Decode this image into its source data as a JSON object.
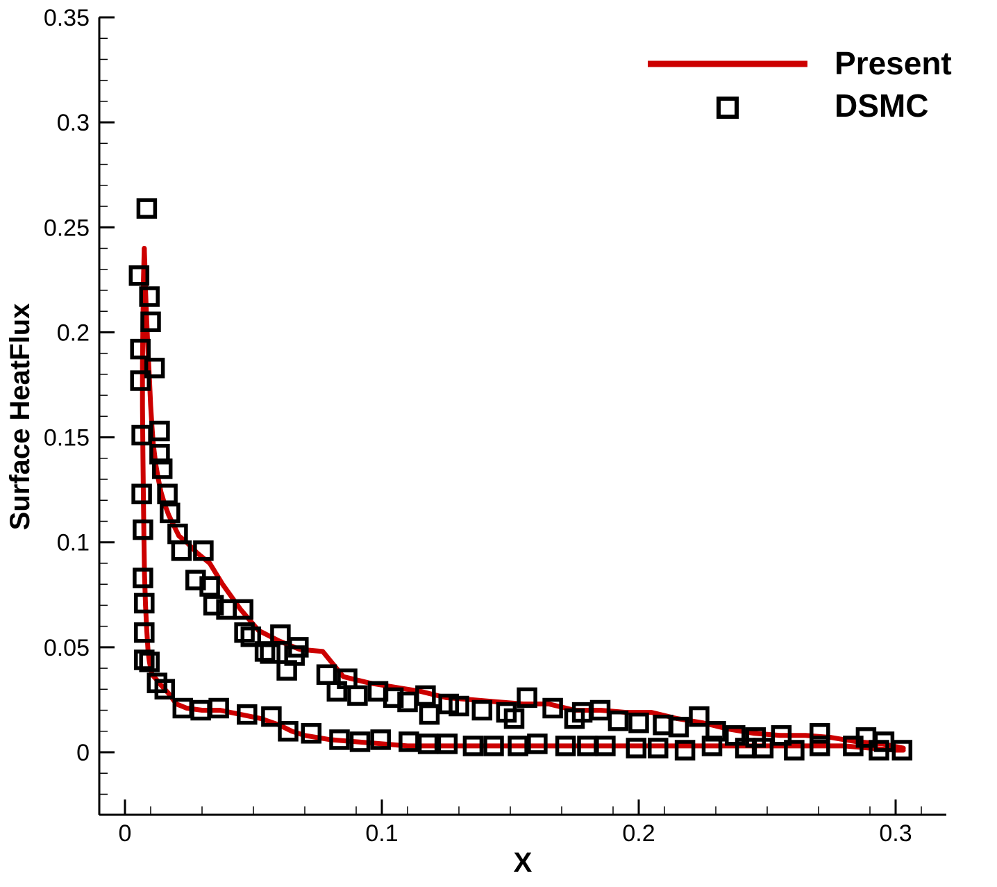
{
  "chart_data": {
    "type": "line",
    "xlabel": "X",
    "ylabel": "Surface HeatFlux",
    "xlim": [
      -0.01,
      0.32
    ],
    "ylim": [
      -0.03,
      0.35
    ],
    "xticks": [
      {
        "value": 0,
        "label": "0"
      },
      {
        "value": 0.1,
        "label": "0.1"
      },
      {
        "value": 0.2,
        "label": "0.2"
      },
      {
        "value": 0.3,
        "label": "0.3"
      }
    ],
    "yticks": [
      {
        "value": 0,
        "label": "0"
      },
      {
        "value": 0.05,
        "label": "0.05"
      },
      {
        "value": 0.1,
        "label": "0.1"
      },
      {
        "value": 0.15,
        "label": "0.15"
      },
      {
        "value": 0.2,
        "label": "0.2"
      },
      {
        "value": 0.25,
        "label": "0.25"
      },
      {
        "value": 0.3,
        "label": "0.3"
      },
      {
        "value": 0.35,
        "label": "0.35"
      }
    ],
    "xminor_step": 0.02,
    "yminor_step": 0.01,
    "legend_position": "top-right",
    "series": [
      {
        "name": "Present",
        "style": "line",
        "color": "#cc0000",
        "segments": [
          {
            "x": [
              0.0075,
              0.0078,
              0.008,
              0.0085,
              0.009,
              0.0095,
              0.01,
              0.0105,
              0.011,
              0.012,
              0.013,
              0.014,
              0.0155,
              0.017,
              0.019,
              0.021,
              0.024,
              0.028,
              0.033,
              0.038,
              0.045,
              0.052,
              0.06,
              0.068,
              0.077,
              0.085,
              0.095,
              0.105,
              0.115,
              0.125,
              0.135,
              0.145,
              0.155,
              0.165,
              0.175,
              0.185,
              0.195,
              0.205,
              0.215,
              0.225,
              0.235,
              0.245,
              0.255,
              0.265,
              0.275,
              0.285,
              0.295,
              0.303
            ],
            "y": [
              0.24,
              0.23,
              0.22,
              0.205,
              0.19,
              0.178,
              0.165,
              0.155,
              0.147,
              0.137,
              0.13,
              0.124,
              0.118,
              0.113,
              0.108,
              0.103,
              0.1,
              0.095,
              0.09,
              0.08,
              0.068,
              0.058,
              0.053,
              0.049,
              0.048,
              0.036,
              0.033,
              0.031,
              0.029,
              0.026,
              0.025,
              0.024,
              0.023,
              0.023,
              0.02,
              0.02,
              0.019,
              0.019,
              0.016,
              0.014,
              0.011,
              0.009,
              0.008,
              0.008,
              0.007,
              0.005,
              0.004,
              0.002
            ]
          },
          {
            "x": [
              0.0075,
              0.0072,
              0.007,
              0.0068,
              0.0068,
              0.007,
              0.0072,
              0.0074,
              0.0076,
              0.008,
              0.0085,
              0.009,
              0.0095,
              0.0105,
              0.012,
              0.014,
              0.017,
              0.02,
              0.024,
              0.03,
              0.037,
              0.045,
              0.053,
              0.06,
              0.065,
              0.07,
              0.08,
              0.09,
              0.1,
              0.11,
              0.12,
              0.13,
              0.14,
              0.15,
              0.16,
              0.17,
              0.18,
              0.19,
              0.2,
              0.21,
              0.22,
              0.23,
              0.24,
              0.25,
              0.26,
              0.27,
              0.28,
              0.29,
              0.3,
              0.303
            ],
            "y": [
              0.24,
              0.225,
              0.205,
              0.185,
              0.165,
              0.14,
              0.12,
              0.1,
              0.085,
              0.07,
              0.058,
              0.048,
              0.043,
              0.037,
              0.035,
              0.032,
              0.028,
              0.023,
              0.021,
              0.02,
              0.02,
              0.018,
              0.016,
              0.013,
              0.01,
              0.008,
              0.006,
              0.005,
              0.004,
              0.003,
              0.003,
              0.003,
              0.003,
              0.003,
              0.003,
              0.003,
              0.003,
              0.003,
              0.003,
              0.003,
              0.003,
              0.003,
              0.003,
              0.003,
              0.003,
              0.003,
              0.003,
              0.002,
              0.001,
              0.001
            ]
          }
        ]
      },
      {
        "name": "DSMC",
        "style": "square-markers",
        "color": "#000000",
        "x": [
          0.0085,
          0.0055,
          0.0095,
          0.01,
          0.006,
          0.0115,
          0.006,
          0.0135,
          0.0065,
          0.0135,
          0.0145,
          0.0065,
          0.0165,
          0.007,
          0.0175,
          0.0205,
          0.007,
          0.022,
          0.0075,
          0.0305,
          0.0275,
          0.0075,
          0.033,
          0.0345,
          0.046,
          0.0075,
          0.0395,
          0.0465,
          0.049,
          0.0545,
          0.0605,
          0.0565,
          0.0675,
          0.066,
          0.063,
          0.0785,
          0.0865,
          0.0825,
          0.0905,
          0.0985,
          0.1045,
          0.11,
          0.117,
          0.1185,
          0.126,
          0.13,
          0.139,
          0.1485,
          0.1515,
          0.1565,
          0.1665,
          0.175,
          0.178,
          0.185,
          0.192,
          0.2,
          0.2095,
          0.2155,
          0.2235,
          0.23,
          0.2375,
          0.2455,
          0.2555,
          0.2705,
          0.2885,
          0.2955,
          0.0095,
          0.0125,
          0.0155,
          0.0225,
          0.0295,
          0.0365,
          0.0475,
          0.057,
          0.0635,
          0.0725,
          0.0835,
          0.0915,
          0.0995,
          0.1105,
          0.118,
          0.1255,
          0.1355,
          0.1435,
          0.153,
          0.1605,
          0.1715,
          0.18,
          0.187,
          0.199,
          0.2075,
          0.218,
          0.2285,
          0.2415,
          0.2485,
          0.2605,
          0.2705,
          0.2835,
          0.2935,
          0.3025
        ],
        "y": [
          0.259,
          0.227,
          0.217,
          0.205,
          0.192,
          0.183,
          0.177,
          0.153,
          0.151,
          0.142,
          0.135,
          0.123,
          0.123,
          0.106,
          0.114,
          0.104,
          0.083,
          0.096,
          0.071,
          0.096,
          0.082,
          0.057,
          0.079,
          0.07,
          0.068,
          0.044,
          0.068,
          0.057,
          0.055,
          0.048,
          0.056,
          0.047,
          0.05,
          0.046,
          0.039,
          0.037,
          0.035,
          0.029,
          0.027,
          0.029,
          0.026,
          0.024,
          0.027,
          0.018,
          0.023,
          0.022,
          0.02,
          0.019,
          0.016,
          0.026,
          0.021,
          0.016,
          0.019,
          0.02,
          0.015,
          0.014,
          0.013,
          0.012,
          0.017,
          0.01,
          0.008,
          0.007,
          0.008,
          0.009,
          0.007,
          0.005,
          0.043,
          0.033,
          0.03,
          0.021,
          0.02,
          0.021,
          0.018,
          0.017,
          0.01,
          0.009,
          0.006,
          0.005,
          0.006,
          0.005,
          0.004,
          0.004,
          0.003,
          0.003,
          0.003,
          0.004,
          0.003,
          0.003,
          0.003,
          0.002,
          0.002,
          0.001,
          0.003,
          0.002,
          0.002,
          0.001,
          0.003,
          0.003,
          0.001,
          0.001
        ]
      }
    ]
  }
}
